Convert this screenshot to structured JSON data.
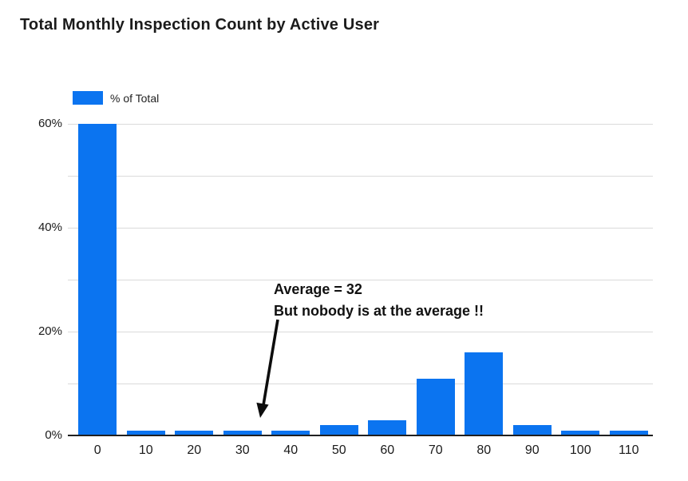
{
  "title": "Total Monthly Inspection Count by Active User",
  "legend": {
    "label": "% of Total"
  },
  "annotation": {
    "line1": "Average = 32",
    "line2": "But nobody is at the average !!"
  },
  "colors": {
    "bar": "#0b74f0",
    "gridline": "#dadada",
    "axis": "#202020",
    "title_text": "#1b1b1b",
    "tick_text": "#1a1a1a",
    "annotation_text": "#111111",
    "background": "#ffffff"
  },
  "chart_data": {
    "type": "bar",
    "title": "Total Monthly Inspection Count by Active User",
    "categories": [
      "0",
      "10",
      "20",
      "30",
      "40",
      "50",
      "60",
      "70",
      "80",
      "90",
      "100",
      "110"
    ],
    "series": [
      {
        "name": "% of Total",
        "values": [
          60,
          1,
          1,
          1,
          1,
          2,
          3,
          11,
          16,
          2,
          1,
          1
        ]
      }
    ],
    "xlabel": "",
    "ylabel": "% of Total",
    "ylim": [
      0,
      60
    ],
    "y_ticks": [
      0,
      20,
      40,
      60
    ],
    "y_tick_labels": [
      "0%",
      "20%",
      "40%",
      "60%"
    ],
    "gridline_values": [
      10,
      20,
      30,
      40,
      50,
      60
    ],
    "grid": true,
    "legend_position": "top-left",
    "annotations": [
      "Average = 32",
      "But nobody is at the average !!"
    ]
  }
}
